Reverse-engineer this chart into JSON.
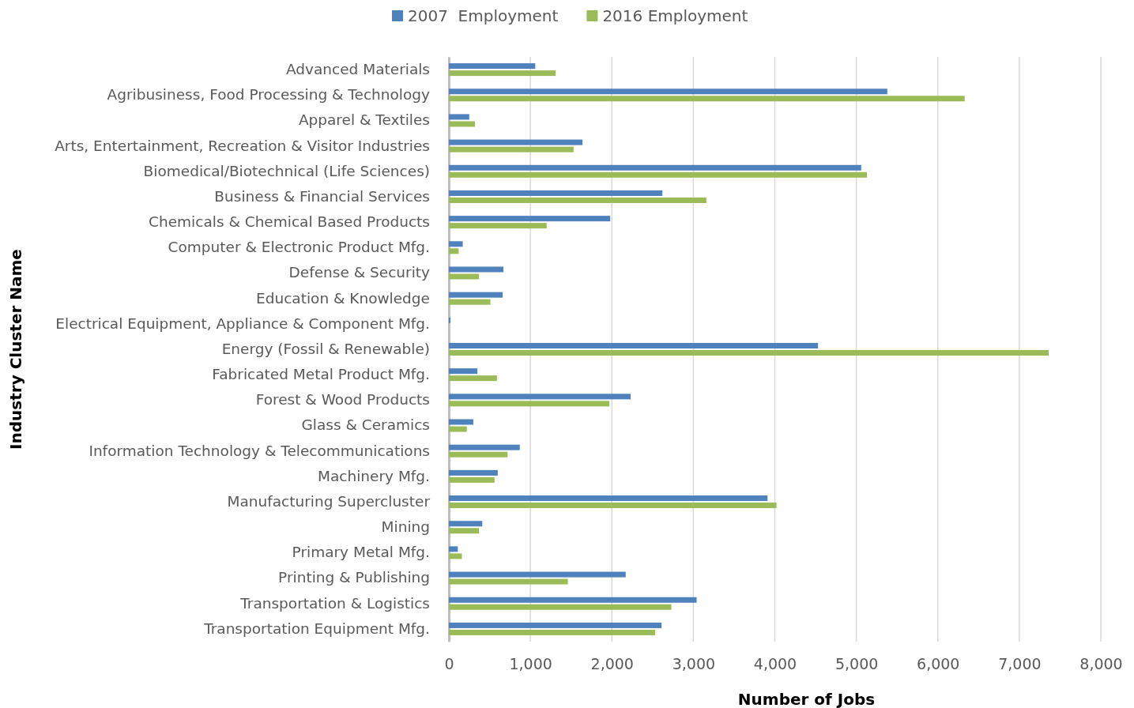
{
  "chart_data": {
    "type": "bar",
    "orientation": "horizontal",
    "xlabel": "Number of Jobs",
    "ylabel": "Industry Cluster Name",
    "categories": [
      "Advanced Materials",
      "Agribusiness, Food Processing & Technology",
      "Apparel & Textiles",
      "Arts, Entertainment, Recreation & Visitor Industries",
      "Biomedical/Biotechnical (Life Sciences)",
      "Business & Financial Services",
      "Chemicals & Chemical Based Products",
      "Computer & Electronic Product Mfg.",
      "Defense & Security",
      "Education & Knowledge",
      "Electrical Equipment, Appliance & Component Mfg.",
      "Energy (Fossil & Renewable)",
      "Fabricated Metal Product Mfg.",
      "Forest & Wood Products",
      "Glass & Ceramics",
      "Information Technology & Telecommunications",
      "Machinery Mfg.",
      "Manufacturing Supercluster",
      "Mining",
      "Primary Metal Mfg.",
      "Printing & Publishing",
      "Transportation & Logistics",
      "Transportation Equipment Mfg."
    ],
    "series": [
      {
        "name": "2007  Employment",
        "color": "#4f81bd",
        "values": [
          1060,
          5380,
          250,
          1640,
          5060,
          2620,
          1980,
          170,
          670,
          660,
          20,
          4530,
          350,
          2230,
          300,
          870,
          600,
          3910,
          410,
          110,
          2170,
          3040,
          2610
        ]
      },
      {
        "name": "2016 Employment",
        "color": "#9bbb59",
        "values": [
          1310,
          6330,
          320,
          1530,
          5130,
          3160,
          1200,
          120,
          370,
          510,
          0,
          7360,
          590,
          1970,
          220,
          720,
          560,
          4020,
          370,
          160,
          1460,
          2730,
          2530
        ]
      }
    ],
    "xlim": [
      0,
      8000
    ],
    "xticks": [
      {
        "value": 0,
        "label": "0"
      },
      {
        "value": 1000,
        "label": "1,000"
      },
      {
        "value": 2000,
        "label": "2,000"
      },
      {
        "value": 3000,
        "label": "3,000"
      },
      {
        "value": 4000,
        "label": "4,000"
      },
      {
        "value": 5000,
        "label": "5,000"
      },
      {
        "value": 6000,
        "label": "6,000"
      },
      {
        "value": 7000,
        "label": "7,000"
      },
      {
        "value": 8000,
        "label": "8,000"
      }
    ],
    "grid": "x",
    "legend": "top"
  }
}
